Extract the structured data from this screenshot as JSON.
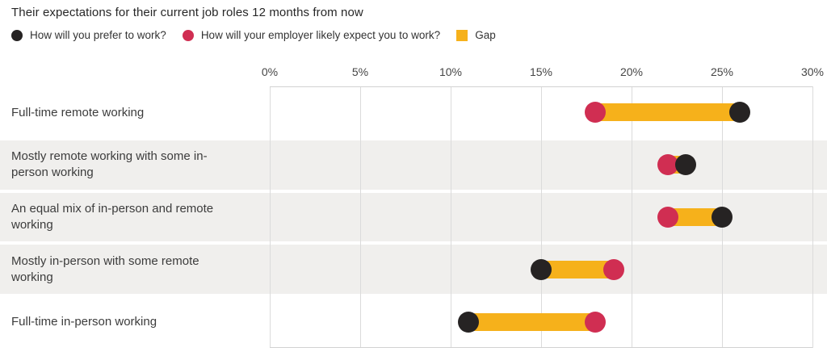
{
  "title": "Their expectations for their current job roles 12 months from now",
  "legend": {
    "items": [
      {
        "label": "How will you prefer to work?",
        "shape": "circle",
        "color": "#262323"
      },
      {
        "label": "How will your employer likely expect you to work?",
        "shape": "circle",
        "color": "#D02E52"
      },
      {
        "label": "Gap",
        "shape": "square",
        "color": "#F6B11B"
      }
    ]
  },
  "chart_data": {
    "type": "scatter",
    "variant": "dumbbell",
    "title": "Their expectations for their current job roles 12 months from now",
    "categories": [
      "Full-time remote working",
      "Mostly remote working with some in-person working",
      "An equal mix of in-person and remote working",
      "Mostly in-person with some remote working",
      "Full-time in-person working"
    ],
    "series": [
      {
        "name": "How will you prefer to work?",
        "marker": "circle",
        "color": "#262323",
        "values": [
          26,
          23,
          25,
          15,
          11
        ]
      },
      {
        "name": "How will your employer likely expect you to work?",
        "marker": "circle",
        "color": "#D02E52",
        "values": [
          18,
          22,
          22,
          19,
          18
        ]
      }
    ],
    "gap": {
      "name": "Gap",
      "color": "#F6B11B",
      "values": [
        8,
        1,
        3,
        4,
        7
      ]
    },
    "xlabel": "",
    "ylabel": "",
    "xlim": [
      0,
      30
    ],
    "x_ticks": [
      0,
      5,
      10,
      15,
      20,
      25,
      30
    ],
    "x_tick_labels": [
      "0%",
      "5%",
      "10%",
      "15%",
      "20%",
      "25%",
      "30%"
    ],
    "grid": "vertical",
    "legend_position": "top",
    "shaded_row_indexes": [
      1,
      2,
      3
    ],
    "colors": {
      "row_band": "#F0EFED",
      "gridline": "#DBDBDB",
      "plot_border": "#D2D2D2",
      "axis_text": "#454545",
      "label_text": "#3C3C3C"
    }
  }
}
